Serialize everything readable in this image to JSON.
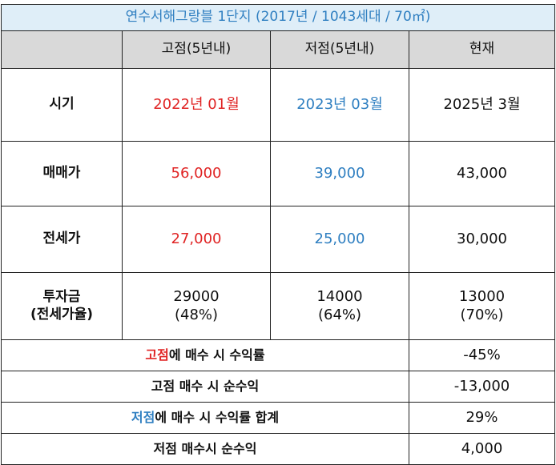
{
  "table": {
    "title": "연수서해그랑블 1단지 (2017년 / 1043세대 / 70㎡)",
    "header": [
      "고점(5년내)",
      "저점(5년내)",
      "현재"
    ],
    "rows": [
      {
        "label": [
          "시기"
        ],
        "cells": [
          [
            "2022년 01월"
          ],
          [
            "2023년 03월"
          ],
          [
            "2025년 3월"
          ]
        ]
      },
      {
        "label": [
          "매매가"
        ],
        "cells": [
          [
            "56,000"
          ],
          [
            "39,000"
          ],
          [
            "43,000"
          ]
        ]
      },
      {
        "label": [
          "전세가"
        ],
        "cells": [
          [
            "27,000"
          ],
          [
            "25,000"
          ],
          [
            "30,000"
          ]
        ]
      },
      {
        "label": [
          "투자금",
          "(전세가율)"
        ],
        "cells": [
          [
            "29000",
            "(48%)"
          ],
          [
            "14000",
            "(64%)"
          ],
          [
            "13000",
            "(70%)"
          ]
        ]
      }
    ],
    "summary": [
      {
        "highlight": "고점",
        "rest": "에 매수 시 수익률",
        "value": "-45%"
      },
      {
        "highlight": null,
        "rest": "고점 매수 시 순수익",
        "value": "-13,000"
      },
      {
        "highlight": "저점",
        "rest": "에 매수 시 수익률 합계",
        "value": "29%"
      },
      {
        "highlight": null,
        "rest": "저점 매수시 순수익",
        "value": "4,000"
      }
    ]
  }
}
